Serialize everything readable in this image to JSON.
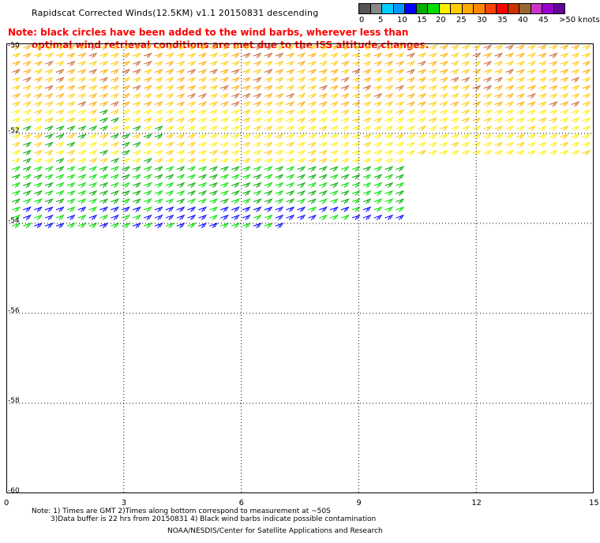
{
  "title": "Rapidscat Corrected Winds(12.5KM) v1.1 20150831 descending",
  "note_lines": [
    "Note: black circles have been added to the wind barbs, wherever less than",
    "optimal wind retrieval conditions are met due to the ISS altitude changes."
  ],
  "legend": {
    "labels": [
      "0",
      "5",
      "10",
      "15",
      "20",
      "25",
      "30",
      "35",
      "40",
      "45",
      ">50 knots"
    ],
    "colors": [
      "#555555",
      "#888888",
      "#00ccff",
      "#0099ff",
      "#0000ff",
      "#00aa00",
      "#00dd00",
      "#ffee00",
      "#ffcc00",
      "#ffaa00",
      "#ff8800",
      "#ff4400",
      "#ff0000",
      "#cc3300",
      "#996633",
      "#cc33cc",
      "#9900cc",
      "#660099"
    ]
  },
  "map": {
    "lat_labels": [
      "-50",
      "-52",
      "-54",
      "-56",
      "-58",
      "-60"
    ],
    "lon_labels": [
      "0",
      "3",
      "6",
      "9",
      "12",
      "15"
    ],
    "lat_range": [
      -60,
      -50
    ],
    "lon_range": [
      0,
      15
    ],
    "grid": true,
    "wind_field": [
      {
        "region": "north strip",
        "lat": [
          -50,
          -51.5
        ],
        "lon": [
          0,
          15
        ],
        "speed_knots": "25-35"
      },
      {
        "region": "central band",
        "lat": [
          -51.5,
          -53
        ],
        "lon": [
          0,
          15
        ],
        "speed_knots": "20-25"
      },
      {
        "region": "southwest band",
        "lat": [
          -53,
          -54.5
        ],
        "lon": [
          0,
          10
        ],
        "speed_knots": "10-20"
      }
    ]
  },
  "footer": {
    "note1": "Note: 1) Times are GMT 2)Times along bottom correspond to measurement at ~50S",
    "note2": "3)Data buffer is 22 hrs from 20150831 4) Black wind barbs indicate possible contamination",
    "credit": "NOAA/NESDIS/Center for Satellite Applications and Research"
  }
}
